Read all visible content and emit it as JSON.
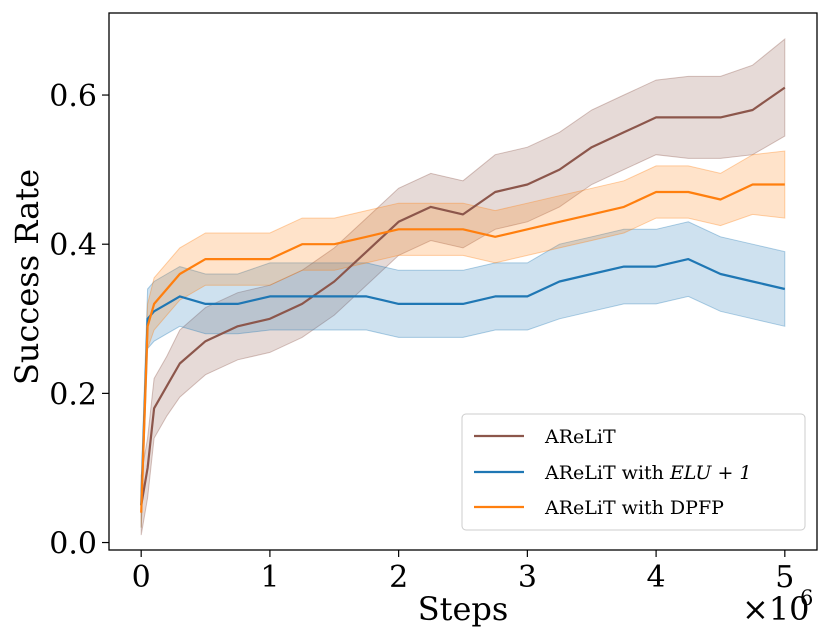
{
  "chart_data": {
    "type": "line",
    "xlabel": "Steps",
    "ylabel": "Success Rate",
    "x_multiplier_label": "×10",
    "x_multiplier_exp": "6",
    "xlim": [
      -0.25,
      5.25
    ],
    "ylim": [
      -0.01,
      0.71
    ],
    "xticks": [
      0,
      1,
      2,
      3,
      4,
      5
    ],
    "xtick_labels": [
      "0",
      "1",
      "2",
      "3",
      "4",
      "5"
    ],
    "yticks": [
      0.0,
      0.2,
      0.4,
      0.6
    ],
    "ytick_labels": [
      "0.0",
      "0.2",
      "0.4",
      "0.6"
    ],
    "grid": false,
    "legend_position": "lower-right",
    "series": [
      {
        "name": "AReLiT",
        "color": "#8c564b",
        "x": [
          0,
          0.05,
          0.1,
          0.2,
          0.3,
          0.5,
          0.75,
          1.0,
          1.25,
          1.5,
          1.75,
          2.0,
          2.25,
          2.5,
          2.75,
          3.0,
          3.25,
          3.5,
          3.75,
          4.0,
          4.25,
          4.5,
          4.75,
          5.0
        ],
        "values": [
          0.05,
          0.1,
          0.18,
          0.21,
          0.24,
          0.27,
          0.29,
          0.3,
          0.32,
          0.35,
          0.39,
          0.43,
          0.45,
          0.44,
          0.47,
          0.48,
          0.5,
          0.53,
          0.55,
          0.57,
          0.57,
          0.57,
          0.58,
          0.61
        ],
        "band": [
          0.04,
          0.04,
          0.04,
          0.04,
          0.045,
          0.045,
          0.045,
          0.045,
          0.045,
          0.045,
          0.045,
          0.045,
          0.045,
          0.045,
          0.05,
          0.05,
          0.05,
          0.05,
          0.05,
          0.05,
          0.055,
          0.055,
          0.06,
          0.065
        ]
      },
      {
        "name": "AReLiT with ELU + 1",
        "legend_plain": "AReLiT with ",
        "legend_math": "ELU + 1",
        "color": "#1f77b4",
        "x": [
          0,
          0.05,
          0.1,
          0.2,
          0.3,
          0.5,
          0.75,
          1.0,
          1.25,
          1.5,
          1.75,
          2.0,
          2.25,
          2.5,
          2.75,
          3.0,
          3.25,
          3.5,
          3.75,
          4.0,
          4.25,
          4.5,
          4.75,
          5.0
        ],
        "values": [
          0.05,
          0.3,
          0.31,
          0.32,
          0.33,
          0.32,
          0.32,
          0.33,
          0.33,
          0.33,
          0.33,
          0.32,
          0.32,
          0.32,
          0.33,
          0.33,
          0.35,
          0.36,
          0.37,
          0.37,
          0.38,
          0.36,
          0.35,
          0.34
        ],
        "band": [
          0.03,
          0.04,
          0.04,
          0.04,
          0.04,
          0.04,
          0.04,
          0.045,
          0.045,
          0.045,
          0.045,
          0.045,
          0.045,
          0.045,
          0.045,
          0.045,
          0.05,
          0.05,
          0.05,
          0.05,
          0.05,
          0.05,
          0.05,
          0.05
        ]
      },
      {
        "name": "AReLiT with DPFP",
        "color": "#ff7f0e",
        "x": [
          0,
          0.05,
          0.1,
          0.2,
          0.3,
          0.5,
          0.75,
          1.0,
          1.25,
          1.5,
          1.75,
          2.0,
          2.25,
          2.5,
          2.75,
          3.0,
          3.25,
          3.5,
          3.75,
          4.0,
          4.25,
          4.5,
          4.75,
          5.0
        ],
        "values": [
          0.04,
          0.29,
          0.32,
          0.34,
          0.36,
          0.38,
          0.38,
          0.38,
          0.4,
          0.4,
          0.41,
          0.42,
          0.42,
          0.42,
          0.41,
          0.42,
          0.43,
          0.44,
          0.45,
          0.47,
          0.47,
          0.46,
          0.48,
          0.48
        ],
        "band": [
          0.02,
          0.03,
          0.035,
          0.035,
          0.035,
          0.035,
          0.035,
          0.035,
          0.035,
          0.035,
          0.035,
          0.035,
          0.035,
          0.035,
          0.035,
          0.035,
          0.035,
          0.035,
          0.035,
          0.035,
          0.035,
          0.035,
          0.04,
          0.045
        ]
      }
    ]
  }
}
